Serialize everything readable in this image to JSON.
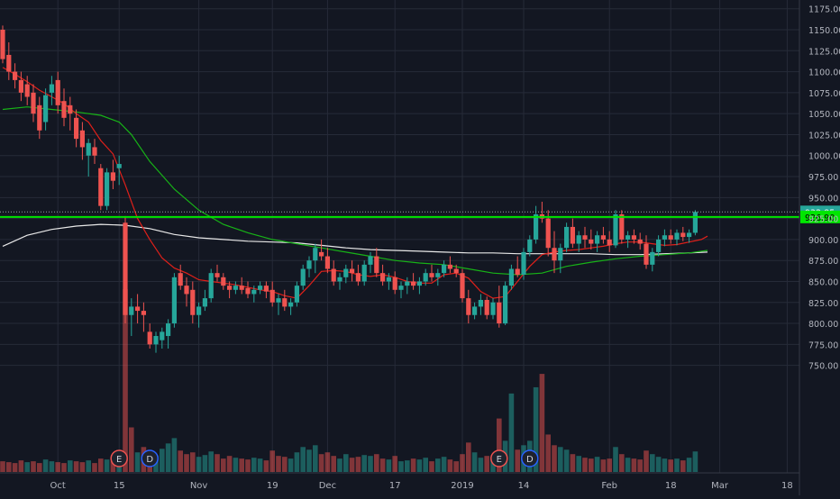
{
  "chart_data": {
    "type": "candlestick",
    "title": "",
    "ylim": [
      730,
      1180
    ],
    "y_ticks": [
      "1175.00",
      "1150.00",
      "1125.00",
      "1100.00",
      "1075.00",
      "1050.00",
      "1025.00",
      "1000.00",
      "975.00",
      "950.00",
      "925.00",
      "900.00",
      "875.00",
      "850.00",
      "825.00",
      "800.00",
      "775.00",
      "750.00"
    ],
    "y_tick_values": [
      1175,
      1150,
      1125,
      1100,
      1075,
      1050,
      1025,
      1000,
      975,
      950,
      925,
      900,
      875,
      850,
      825,
      800,
      775,
      750
    ],
    "x_ticks": [
      {
        "label": "Oct",
        "index": 9
      },
      {
        "label": "15",
        "index": 19
      },
      {
        "label": "Nov",
        "index": 32
      },
      {
        "label": "19",
        "index": 44
      },
      {
        "label": "Dec",
        "index": 53
      },
      {
        "label": "17",
        "index": 64
      },
      {
        "label": "2019",
        "index": 75
      },
      {
        "label": "14",
        "index": 85
      },
      {
        "label": "Feb",
        "index": 99
      },
      {
        "label": "18",
        "index": 109
      },
      {
        "label": "Mar",
        "index": 117
      },
      {
        "label": "18",
        "index": 128
      }
    ],
    "colors": {
      "background": "#131722",
      "grid": "#262b38",
      "up": "#26a69a",
      "down": "#ef5350",
      "ma_fast": "#e0201a",
      "ma_mid": "#17b317",
      "ma_slow": "#e8e8e8",
      "support": "#00e600",
      "axis_text": "#b2b5be"
    },
    "last_price": "932.85",
    "support_level": 926.9,
    "support_label": "926.90",
    "ohlc": [
      [
        1150,
        1155,
        1110,
        1115
      ],
      [
        1120,
        1135,
        1090,
        1100
      ],
      [
        1100,
        1110,
        1080,
        1090
      ],
      [
        1090,
        1100,
        1065,
        1075
      ],
      [
        1085,
        1095,
        1060,
        1070
      ],
      [
        1075,
        1085,
        1040,
        1050
      ],
      [
        1060,
        1070,
        1020,
        1030
      ],
      [
        1040,
        1080,
        1030,
        1072
      ],
      [
        1075,
        1095,
        1060,
        1085
      ],
      [
        1090,
        1100,
        1050,
        1060
      ],
      [
        1065,
        1080,
        1035,
        1045
      ],
      [
        1060,
        1070,
        1030,
        1050
      ],
      [
        1045,
        1055,
        1010,
        1020
      ],
      [
        1030,
        1040,
        995,
        1010
      ],
      [
        1000,
        1020,
        975,
        1015
      ],
      [
        1010,
        1020,
        990,
        1000
      ],
      [
        985,
        990,
        935,
        940
      ],
      [
        940,
        985,
        935,
        980
      ],
      [
        980,
        995,
        960,
        970
      ],
      [
        985,
        1000,
        965,
        990
      ],
      [
        920,
        928,
        800,
        810
      ],
      [
        810,
        830,
        785,
        820
      ],
      [
        820,
        835,
        800,
        815
      ],
      [
        815,
        825,
        790,
        810
      ],
      [
        790,
        800,
        770,
        775
      ],
      [
        775,
        790,
        765,
        785
      ],
      [
        780,
        795,
        770,
        790
      ],
      [
        785,
        805,
        770,
        800
      ],
      [
        800,
        860,
        795,
        855
      ],
      [
        860,
        870,
        840,
        845
      ],
      [
        845,
        855,
        820,
        835
      ],
      [
        840,
        850,
        800,
        810
      ],
      [
        810,
        825,
        795,
        820
      ],
      [
        820,
        840,
        815,
        830
      ],
      [
        830,
        865,
        825,
        860
      ],
      [
        860,
        870,
        850,
        855
      ],
      [
        855,
        860,
        840,
        845
      ],
      [
        845,
        850,
        830,
        840
      ],
      [
        840,
        850,
        835,
        845
      ],
      [
        845,
        855,
        835,
        840
      ],
      [
        842,
        850,
        830,
        835
      ],
      [
        835,
        845,
        825,
        840
      ],
      [
        840,
        850,
        835,
        845
      ],
      [
        845,
        850,
        830,
        838
      ],
      [
        840,
        850,
        820,
        825
      ],
      [
        825,
        835,
        810,
        830
      ],
      [
        830,
        840,
        815,
        820
      ],
      [
        820,
        830,
        810,
        825
      ],
      [
        825,
        850,
        820,
        845
      ],
      [
        845,
        870,
        840,
        865
      ],
      [
        865,
        880,
        855,
        875
      ],
      [
        875,
        895,
        860,
        890
      ],
      [
        885,
        900,
        875,
        880
      ],
      [
        880,
        890,
        860,
        865
      ],
      [
        865,
        875,
        845,
        850
      ],
      [
        850,
        860,
        840,
        855
      ],
      [
        855,
        870,
        848,
        865
      ],
      [
        865,
        875,
        850,
        860
      ],
      [
        860,
        870,
        845,
        850
      ],
      [
        850,
        875,
        845,
        870
      ],
      [
        870,
        885,
        860,
        880
      ],
      [
        880,
        890,
        855,
        860
      ],
      [
        860,
        870,
        845,
        850
      ],
      [
        850,
        860,
        840,
        855
      ],
      [
        855,
        862,
        835,
        840
      ],
      [
        840,
        850,
        830,
        845
      ],
      [
        845,
        855,
        835,
        850
      ],
      [
        850,
        860,
        840,
        845
      ],
      [
        845,
        855,
        835,
        850
      ],
      [
        850,
        865,
        845,
        860
      ],
      [
        860,
        870,
        850,
        855
      ],
      [
        855,
        865,
        845,
        860
      ],
      [
        860,
        875,
        855,
        870
      ],
      [
        870,
        880,
        860,
        865
      ],
      [
        865,
        870,
        855,
        860
      ],
      [
        860,
        865,
        825,
        830
      ],
      [
        830,
        840,
        800,
        810
      ],
      [
        810,
        825,
        805,
        820
      ],
      [
        820,
        835,
        810,
        828
      ],
      [
        828,
        832,
        805,
        810
      ],
      [
        810,
        830,
        805,
        825
      ],
      [
        825,
        845,
        795,
        800
      ],
      [
        800,
        850,
        798,
        845
      ],
      [
        845,
        870,
        840,
        865
      ],
      [
        865,
        880,
        855,
        858
      ],
      [
        858,
        890,
        852,
        885
      ],
      [
        885,
        905,
        880,
        900
      ],
      [
        900,
        940,
        895,
        930
      ],
      [
        930,
        945,
        920,
        925
      ],
      [
        925,
        935,
        880,
        890
      ],
      [
        890,
        910,
        860,
        875
      ],
      [
        875,
        895,
        860,
        890
      ],
      [
        890,
        920,
        885,
        915
      ],
      [
        915,
        925,
        890,
        895
      ],
      [
        895,
        910,
        885,
        905
      ],
      [
        905,
        915,
        890,
        900
      ],
      [
        900,
        912,
        888,
        895
      ],
      [
        895,
        910,
        885,
        905
      ],
      [
        905,
        915,
        895,
        900
      ],
      [
        900,
        910,
        885,
        893
      ],
      [
        893,
        935,
        890,
        930
      ],
      [
        930,
        935,
        895,
        900
      ],
      [
        900,
        910,
        890,
        905
      ],
      [
        905,
        912,
        895,
        900
      ],
      [
        900,
        908,
        888,
        895
      ],
      [
        895,
        905,
        865,
        870
      ],
      [
        870,
        890,
        862,
        885
      ],
      [
        885,
        905,
        880,
        900
      ],
      [
        900,
        912,
        892,
        905
      ],
      [
        905,
        912,
        895,
        900
      ],
      [
        900,
        912,
        893,
        908
      ],
      [
        908,
        915,
        898,
        903
      ],
      [
        903,
        912,
        896,
        908
      ],
      [
        908,
        935,
        905,
        932.85
      ]
    ],
    "volume": [
      [
        12,
        "down"
      ],
      [
        11,
        "down"
      ],
      [
        10,
        "down"
      ],
      [
        13,
        "down"
      ],
      [
        11,
        "up"
      ],
      [
        12,
        "down"
      ],
      [
        10,
        "down"
      ],
      [
        14,
        "up"
      ],
      [
        12,
        "up"
      ],
      [
        11,
        "down"
      ],
      [
        10,
        "down"
      ],
      [
        13,
        "up"
      ],
      [
        12,
        "down"
      ],
      [
        11,
        "down"
      ],
      [
        13,
        "up"
      ],
      [
        10,
        "down"
      ],
      [
        15,
        "down"
      ],
      [
        14,
        "up"
      ],
      [
        12,
        "down"
      ],
      [
        13,
        "up"
      ],
      [
        205,
        "down"
      ],
      [
        50,
        "down"
      ],
      [
        22,
        "up"
      ],
      [
        28,
        "down"
      ],
      [
        24,
        "down"
      ],
      [
        18,
        "up"
      ],
      [
        26,
        "up"
      ],
      [
        32,
        "up"
      ],
      [
        38,
        "up"
      ],
      [
        24,
        "down"
      ],
      [
        20,
        "down"
      ],
      [
        22,
        "down"
      ],
      [
        17,
        "up"
      ],
      [
        19,
        "up"
      ],
      [
        23,
        "up"
      ],
      [
        20,
        "down"
      ],
      [
        15,
        "down"
      ],
      [
        18,
        "down"
      ],
      [
        16,
        "up"
      ],
      [
        15,
        "down"
      ],
      [
        14,
        "down"
      ],
      [
        16,
        "up"
      ],
      [
        15,
        "up"
      ],
      [
        13,
        "down"
      ],
      [
        24,
        "down"
      ],
      [
        18,
        "down"
      ],
      [
        17,
        "down"
      ],
      [
        15,
        "up"
      ],
      [
        22,
        "up"
      ],
      [
        28,
        "up"
      ],
      [
        25,
        "up"
      ],
      [
        30,
        "up"
      ],
      [
        20,
        "down"
      ],
      [
        22,
        "down"
      ],
      [
        18,
        "down"
      ],
      [
        15,
        "up"
      ],
      [
        20,
        "up"
      ],
      [
        16,
        "down"
      ],
      [
        17,
        "down"
      ],
      [
        19,
        "up"
      ],
      [
        18,
        "up"
      ],
      [
        20,
        "down"
      ],
      [
        15,
        "down"
      ],
      [
        14,
        "up"
      ],
      [
        18,
        "down"
      ],
      [
        12,
        "up"
      ],
      [
        13,
        "up"
      ],
      [
        15,
        "down"
      ],
      [
        14,
        "up"
      ],
      [
        16,
        "up"
      ],
      [
        12,
        "down"
      ],
      [
        15,
        "up"
      ],
      [
        17,
        "up"
      ],
      [
        14,
        "down"
      ],
      [
        12,
        "down"
      ],
      [
        20,
        "down"
      ],
      [
        33,
        "down"
      ],
      [
        22,
        "up"
      ],
      [
        16,
        "up"
      ],
      [
        18,
        "down"
      ],
      [
        17,
        "up"
      ],
      [
        60,
        "down"
      ],
      [
        35,
        "up"
      ],
      [
        88,
        "up"
      ],
      [
        25,
        "down"
      ],
      [
        30,
        "up"
      ],
      [
        35,
        "up"
      ],
      [
        95,
        "up"
      ],
      [
        110,
        "down"
      ],
      [
        42,
        "down"
      ],
      [
        30,
        "down"
      ],
      [
        28,
        "up"
      ],
      [
        25,
        "up"
      ],
      [
        20,
        "down"
      ],
      [
        18,
        "up"
      ],
      [
        16,
        "down"
      ],
      [
        15,
        "down"
      ],
      [
        17,
        "up"
      ],
      [
        14,
        "down"
      ],
      [
        15,
        "down"
      ],
      [
        28,
        "up"
      ],
      [
        20,
        "down"
      ],
      [
        16,
        "up"
      ],
      [
        15,
        "down"
      ],
      [
        14,
        "down"
      ],
      [
        24,
        "down"
      ],
      [
        20,
        "up"
      ],
      [
        17,
        "up"
      ],
      [
        15,
        "up"
      ],
      [
        14,
        "down"
      ],
      [
        15,
        "up"
      ],
      [
        13,
        "down"
      ],
      [
        16,
        "up"
      ],
      [
        23,
        "up"
      ]
    ],
    "ma_fast": [
      [
        0,
        1105
      ],
      [
        2,
        1097
      ],
      [
        4,
        1088
      ],
      [
        6,
        1078
      ],
      [
        8,
        1070
      ],
      [
        10,
        1062
      ],
      [
        12,
        1050
      ],
      [
        14,
        1040
      ],
      [
        16,
        1018
      ],
      [
        18,
        1002
      ],
      [
        20,
        965
      ],
      [
        22,
        925
      ],
      [
        24,
        900
      ],
      [
        26,
        878
      ],
      [
        28,
        866
      ],
      [
        30,
        860
      ],
      [
        32,
        852
      ],
      [
        34,
        850
      ],
      [
        36,
        848
      ],
      [
        38,
        846
      ],
      [
        40,
        843
      ],
      [
        42,
        840
      ],
      [
        44,
        838
      ],
      [
        46,
        833
      ],
      [
        48,
        830
      ],
      [
        50,
        845
      ],
      [
        52,
        862
      ],
      [
        54,
        863
      ],
      [
        56,
        862
      ],
      [
        58,
        858
      ],
      [
        60,
        856
      ],
      [
        62,
        858
      ],
      [
        64,
        855
      ],
      [
        66,
        850
      ],
      [
        68,
        848
      ],
      [
        70,
        848
      ],
      [
        72,
        858
      ],
      [
        74,
        860
      ],
      [
        76,
        854
      ],
      [
        78,
        838
      ],
      [
        80,
        830
      ],
      [
        82,
        832
      ],
      [
        84,
        850
      ],
      [
        86,
        868
      ],
      [
        88,
        882
      ],
      [
        90,
        885
      ],
      [
        92,
        887
      ],
      [
        94,
        888
      ],
      [
        96,
        890
      ],
      [
        98,
        892
      ],
      [
        100,
        895
      ],
      [
        102,
        897
      ],
      [
        104,
        897
      ],
      [
        106,
        895
      ],
      [
        108,
        893
      ],
      [
        110,
        894
      ],
      [
        112,
        897
      ],
      [
        114,
        900
      ],
      [
        115,
        904
      ]
    ],
    "ma_mid": [
      [
        0,
        1055
      ],
      [
        4,
        1058
      ],
      [
        8,
        1055
      ],
      [
        12,
        1052
      ],
      [
        16,
        1048
      ],
      [
        19,
        1040
      ],
      [
        21,
        1025
      ],
      [
        24,
        993
      ],
      [
        28,
        960
      ],
      [
        32,
        935
      ],
      [
        36,
        918
      ],
      [
        40,
        908
      ],
      [
        44,
        900
      ],
      [
        48,
        895
      ],
      [
        52,
        890
      ],
      [
        56,
        885
      ],
      [
        60,
        880
      ],
      [
        64,
        875
      ],
      [
        68,
        872
      ],
      [
        72,
        870
      ],
      [
        76,
        865
      ],
      [
        80,
        860
      ],
      [
        84,
        858
      ],
      [
        88,
        860
      ],
      [
        92,
        868
      ],
      [
        96,
        873
      ],
      [
        100,
        877
      ],
      [
        104,
        880
      ],
      [
        108,
        882
      ],
      [
        112,
        884
      ],
      [
        115,
        887
      ]
    ],
    "ma_slow": [
      [
        0,
        892
      ],
      [
        4,
        905
      ],
      [
        8,
        912
      ],
      [
        12,
        916
      ],
      [
        16,
        918
      ],
      [
        20,
        917
      ],
      [
        24,
        913
      ],
      [
        28,
        906
      ],
      [
        32,
        902
      ],
      [
        36,
        900
      ],
      [
        40,
        898
      ],
      [
        44,
        897
      ],
      [
        48,
        896
      ],
      [
        52,
        893
      ],
      [
        56,
        890
      ],
      [
        60,
        888
      ],
      [
        64,
        887
      ],
      [
        68,
        886
      ],
      [
        72,
        885
      ],
      [
        76,
        884
      ],
      [
        80,
        884
      ],
      [
        84,
        883
      ],
      [
        88,
        883
      ],
      [
        92,
        883
      ],
      [
        96,
        883
      ],
      [
        100,
        882
      ],
      [
        104,
        882
      ],
      [
        108,
        883
      ],
      [
        112,
        884
      ],
      [
        115,
        885
      ]
    ],
    "events": [
      {
        "label": "E",
        "index": 19,
        "color": "#ef5350"
      },
      {
        "label": "D",
        "index": 24,
        "color": "#2962ff"
      },
      {
        "label": "E",
        "index": 81,
        "color": "#ef5350"
      },
      {
        "label": "D",
        "index": 86,
        "color": "#2962ff"
      }
    ]
  }
}
